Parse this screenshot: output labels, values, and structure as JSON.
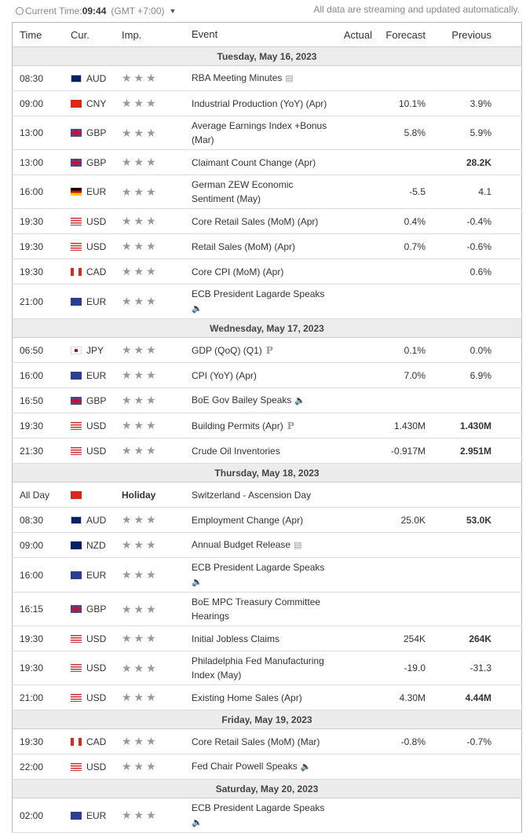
{
  "header": {
    "clock_label": "Current Time:",
    "time": "09:44",
    "timezone": "(GMT +7:00)",
    "notice": "All data are streaming and updated automatically."
  },
  "columns": {
    "time": "Time",
    "cur": "Cur.",
    "imp": "Imp.",
    "event": "Event",
    "actual": "Actual",
    "forecast": "Forecast",
    "previous": "Previous"
  },
  "days": [
    {
      "date": "Tuesday, May 16, 2023",
      "events": [
        {
          "time": "08:30",
          "cur": "AUD",
          "event": "RBA Meeting Minutes",
          "icon": "document",
          "forecast": "",
          "previous": ""
        },
        {
          "time": "09:00",
          "cur": "CNY",
          "event": "Industrial Production (YoY) (Apr)",
          "forecast": "10.1%",
          "previous": "3.9%"
        },
        {
          "time": "13:00",
          "cur": "GBP",
          "event": "Average Earnings Index +Bonus (Mar)",
          "forecast": "5.8%",
          "previous": "5.9%"
        },
        {
          "time": "13:00",
          "cur": "GBP",
          "event": "Claimant Count Change (Apr)",
          "forecast": "",
          "previous": "28.2K",
          "prev_bold": true
        },
        {
          "time": "16:00",
          "cur": "EUR-DE",
          "event": "German ZEW Economic Sentiment (May)",
          "forecast": "-5.5",
          "previous": "4.1"
        },
        {
          "time": "19:30",
          "cur": "USD",
          "event": "Core Retail Sales (MoM) (Apr)",
          "forecast": "0.4%",
          "previous": "-0.4%"
        },
        {
          "time": "19:30",
          "cur": "USD",
          "event": "Retail Sales (MoM) (Apr)",
          "forecast": "0.7%",
          "previous": "-0.6%"
        },
        {
          "time": "19:30",
          "cur": "CAD",
          "event": "Core CPI (MoM) (Apr)",
          "forecast": "",
          "previous": "0.6%"
        },
        {
          "time": "21:00",
          "cur": "EUR",
          "event": "ECB President Lagarde Speaks",
          "icon": "speaker",
          "icon_newline": true,
          "forecast": "",
          "previous": ""
        }
      ]
    },
    {
      "date": "Wednesday, May 17, 2023",
      "events": [
        {
          "time": "06:50",
          "cur": "JPY",
          "event": "GDP (QoQ) (Q1)",
          "icon": "preliminary",
          "forecast": "0.1%",
          "previous": "0.0%"
        },
        {
          "time": "16:00",
          "cur": "EUR",
          "event": "CPI (YoY) (Apr)",
          "forecast": "7.0%",
          "previous": "6.9%"
        },
        {
          "time": "16:50",
          "cur": "GBP",
          "event": "BoE Gov Bailey Speaks",
          "icon": "speaker",
          "forecast": "",
          "previous": ""
        },
        {
          "time": "19:30",
          "cur": "USD",
          "event": "Building Permits (Apr)",
          "icon": "preliminary",
          "forecast": "1.430M",
          "previous": "1.430M",
          "prev_bold": true
        },
        {
          "time": "21:30",
          "cur": "USD",
          "event": "Crude Oil Inventories",
          "forecast": "-0.917M",
          "previous": "2.951M",
          "prev_bold": true
        }
      ]
    },
    {
      "date": "Thursday, May 18, 2023",
      "events": [
        {
          "time": "All Day",
          "cur": "CHF",
          "holiday": "Holiday",
          "event": "Switzerland - Ascension Day",
          "forecast": "",
          "previous": ""
        },
        {
          "time": "08:30",
          "cur": "AUD",
          "event": "Employment Change (Apr)",
          "forecast": "25.0K",
          "previous": "53.0K",
          "prev_bold": true
        },
        {
          "time": "09:00",
          "cur": "NZD",
          "event": "Annual Budget Release",
          "icon": "document",
          "forecast": "",
          "previous": ""
        },
        {
          "time": "16:00",
          "cur": "EUR",
          "event": "ECB President Lagarde Speaks",
          "icon": "speaker",
          "icon_newline": true,
          "forecast": "",
          "previous": ""
        },
        {
          "time": "16:15",
          "cur": "GBP",
          "event": "BoE MPC Treasury Committee Hearings",
          "forecast": "",
          "previous": ""
        },
        {
          "time": "19:30",
          "cur": "USD",
          "event": "Initial Jobless Claims",
          "forecast": "254K",
          "previous": "264K",
          "prev_bold": true
        },
        {
          "time": "19:30",
          "cur": "USD",
          "event": "Philadelphia Fed Manufacturing Index (May)",
          "forecast": "-19.0",
          "previous": "-31.3"
        },
        {
          "time": "21:00",
          "cur": "USD",
          "event": "Existing Home Sales (Apr)",
          "forecast": "4.30M",
          "previous": "4.44M",
          "prev_bold": true
        }
      ]
    },
    {
      "date": "Friday, May 19, 2023",
      "events": [
        {
          "time": "19:30",
          "cur": "CAD",
          "event": "Core Retail Sales (MoM) (Mar)",
          "forecast": "-0.8%",
          "previous": "-0.7%"
        },
        {
          "time": "22:00",
          "cur": "USD",
          "event": "Fed Chair Powell Speaks",
          "icon": "speaker",
          "forecast": "",
          "previous": ""
        }
      ]
    },
    {
      "date": "Saturday, May 20, 2023",
      "events": [
        {
          "time": "02:00",
          "cur": "EUR",
          "event": "ECB President Lagarde Speaks",
          "icon": "speaker",
          "icon_newline": true,
          "forecast": "",
          "previous": ""
        }
      ]
    }
  ]
}
